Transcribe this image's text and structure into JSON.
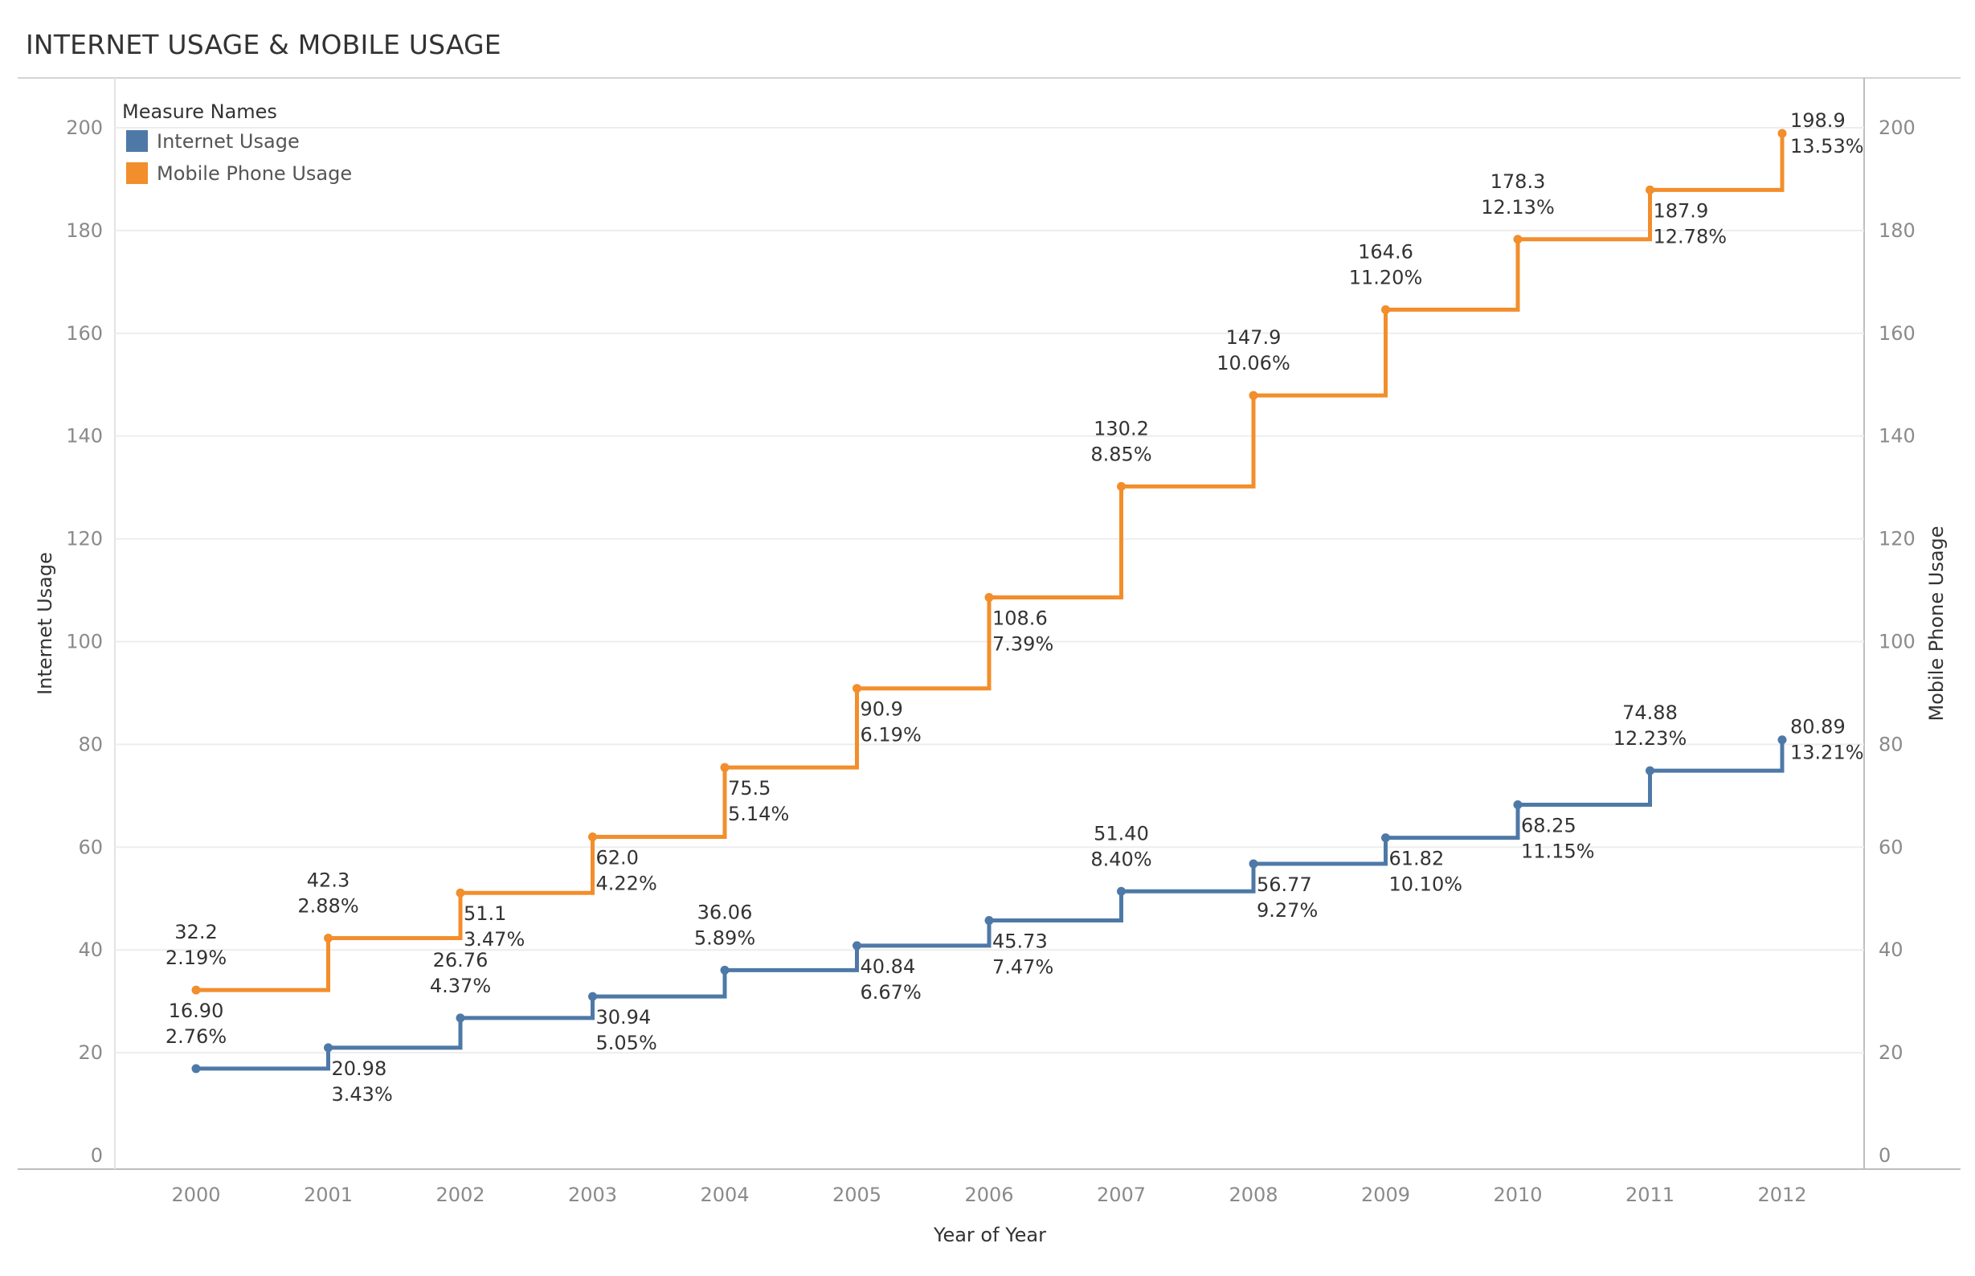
{
  "chart_data": {
    "type": "line",
    "title": "INTERNET USAGE & MOBILE USAGE",
    "xlabel": "Year of Year",
    "ylabel_left": "Internet Usage",
    "ylabel_right": "Mobile Phone Usage",
    "ylim": [
      0,
      200
    ],
    "y_ticks": [
      0,
      20,
      40,
      60,
      80,
      100,
      120,
      140,
      160,
      180,
      200
    ],
    "step": true,
    "grid": true,
    "legend": {
      "title": "Measure Names",
      "placement": "top-left"
    },
    "x": [
      "2000",
      "2001",
      "2002",
      "2003",
      "2004",
      "2005",
      "2006",
      "2007",
      "2008",
      "2009",
      "2010",
      "2011",
      "2012"
    ],
    "series": [
      {
        "name": "Internet Usage",
        "axis": "left",
        "color": "#4e79a7",
        "values": [
          16.9,
          20.98,
          26.76,
          30.94,
          36.06,
          40.84,
          45.73,
          51.4,
          56.77,
          61.82,
          68.25,
          74.88,
          80.89
        ],
        "value_labels": [
          "16.90",
          "20.98",
          "26.76",
          "30.94",
          "36.06",
          "40.84",
          "45.73",
          "51.40",
          "56.77",
          "61.82",
          "68.25",
          "74.88",
          "80.89"
        ],
        "percent_labels": [
          "2.76%",
          "3.43%",
          "4.37%",
          "5.05%",
          "5.89%",
          "6.67%",
          "7.47%",
          "8.40%",
          "9.27%",
          "10.10%",
          "11.15%",
          "12.23%",
          "13.21%"
        ],
        "label_positions": [
          "above",
          "below",
          "above",
          "below",
          "above",
          "below",
          "below",
          "above",
          "below",
          "below",
          "below",
          "above",
          "right"
        ]
      },
      {
        "name": "Mobile Phone Usage",
        "axis": "right",
        "color": "#f28e2b",
        "values": [
          32.2,
          42.3,
          51.1,
          62.0,
          75.5,
          90.9,
          108.6,
          130.2,
          147.9,
          164.6,
          178.3,
          187.9,
          198.9
        ],
        "value_labels": [
          "32.2",
          "42.3",
          "51.1",
          "62.0",
          "75.5",
          "90.9",
          "108.6",
          "130.2",
          "147.9",
          "164.6",
          "178.3",
          "187.9",
          "198.9"
        ],
        "percent_labels": [
          "2.19%",
          "2.88%",
          "3.47%",
          "4.22%",
          "5.14%",
          "6.19%",
          "7.39%",
          "8.85%",
          "10.06%",
          "11.20%",
          "12.13%",
          "12.78%",
          "13.53%"
        ],
        "label_positions": [
          "above",
          "above",
          "below",
          "below",
          "below",
          "below",
          "below",
          "above",
          "above",
          "above",
          "above",
          "below",
          "right"
        ]
      }
    ]
  }
}
